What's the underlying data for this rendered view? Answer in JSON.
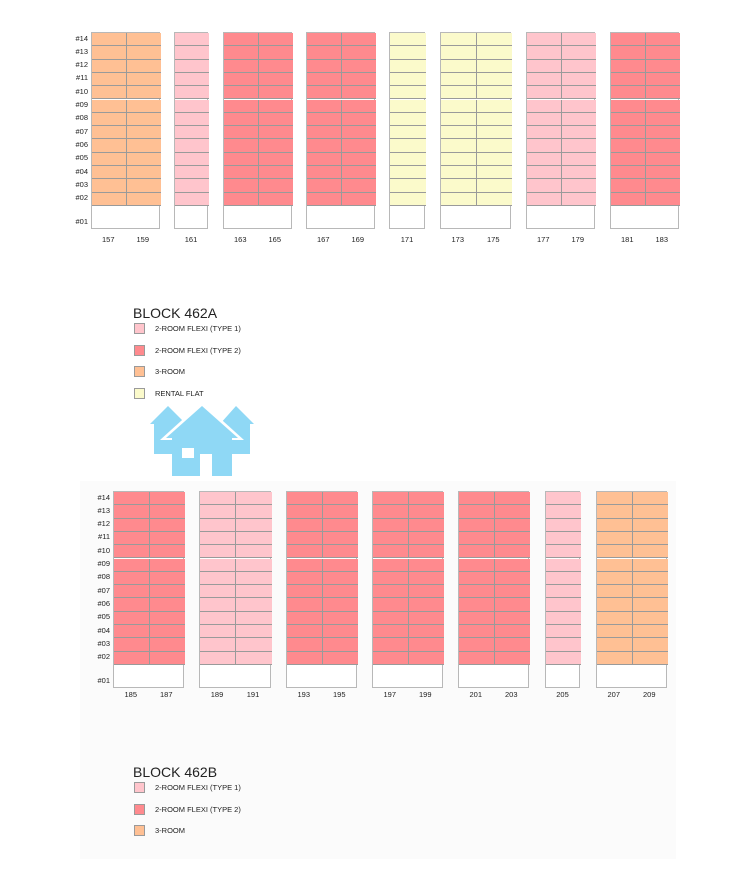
{
  "colors": {
    "flexi_type_1": "#ffc5cc",
    "flexi_type_2": "#ff8a8e",
    "three_room": "#ffc094",
    "rental_flat": "#fbfacb",
    "ground": "#ffffff",
    "house_icon": "#8fd8f5"
  },
  "legend_types": {
    "flexi_type_1": "2-ROOM FLEXI (TYPE 1)",
    "flexi_type_2": "2-ROOM FLEXI (TYPE 2)",
    "three_room": "3-ROOM",
    "rental_flat": "RENTAL FLAT"
  },
  "blocks": [
    {
      "id": "462A",
      "title": "BLOCK 462A",
      "floor_labels": [
        "#14",
        "#13",
        "#12",
        "#11",
        "#10",
        "#09",
        "#08",
        "#07",
        "#06",
        "#05",
        "#04",
        "#03",
        "#02",
        "#01"
      ],
      "stacks": [
        {
          "type": "three_room",
          "units": [
            "157",
            "159"
          ]
        },
        {
          "type": "flexi_type_1",
          "units": [
            "161"
          ]
        },
        {
          "type": "flexi_type_2",
          "units": [
            "163",
            "165"
          ]
        },
        {
          "type": "flexi_type_2",
          "units": [
            "167",
            "169"
          ]
        },
        {
          "type": "rental_flat",
          "units": [
            "171"
          ]
        },
        {
          "type": "rental_flat",
          "units": [
            "173",
            "175"
          ]
        },
        {
          "type": "flexi_type_1",
          "units": [
            "177",
            "179"
          ]
        },
        {
          "type": "flexi_type_2",
          "units": [
            "181",
            "183"
          ]
        }
      ],
      "legend": [
        "flexi_type_1",
        "flexi_type_2",
        "three_room",
        "rental_flat"
      ]
    },
    {
      "id": "462B",
      "title": "BLOCK 462B",
      "floor_labels": [
        "#14",
        "#13",
        "#12",
        "#11",
        "#10",
        "#09",
        "#08",
        "#07",
        "#06",
        "#05",
        "#04",
        "#03",
        "#02",
        "#01"
      ],
      "stacks": [
        {
          "type": "flexi_type_2",
          "units": [
            "185",
            "187"
          ]
        },
        {
          "type": "flexi_type_1",
          "units": [
            "189",
            "191"
          ]
        },
        {
          "type": "flexi_type_2",
          "units": [
            "193",
            "195"
          ]
        },
        {
          "type": "flexi_type_2",
          "units": [
            "197",
            "199"
          ]
        },
        {
          "type": "flexi_type_2",
          "units": [
            "201",
            "203"
          ]
        },
        {
          "type": "flexi_type_1",
          "units": [
            "205"
          ]
        },
        {
          "type": "three_room",
          "units": [
            "207",
            "209"
          ]
        }
      ],
      "legend": [
        "flexi_type_1",
        "flexi_type_2",
        "three_room"
      ]
    }
  ]
}
